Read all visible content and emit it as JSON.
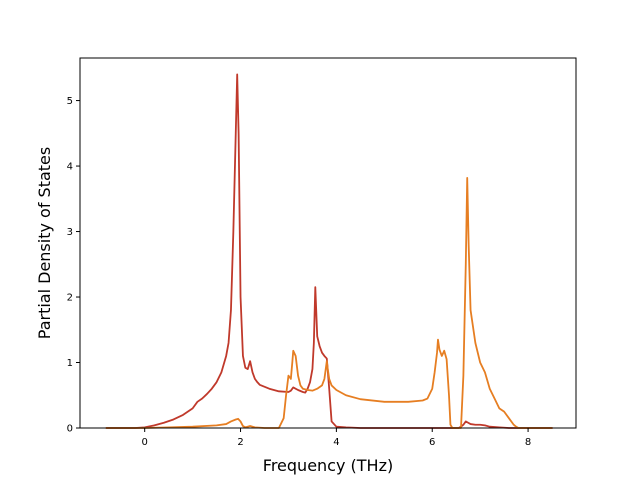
{
  "chart_data": {
    "type": "line",
    "xlabel": "Frequency (THz)",
    "ylabel": "Partial Density of States",
    "xlim": [
      -1.35,
      9.0
    ],
    "ylim": [
      0,
      5.65
    ],
    "xticks": [
      0,
      2,
      4,
      6,
      8
    ],
    "yticks": [
      0,
      1,
      2,
      3,
      4,
      5
    ],
    "grid": false,
    "legend": "none",
    "series": [
      {
        "color": "#c0392b",
        "x": [
          -0.8,
          -0.2,
          0.0,
          0.2,
          0.4,
          0.6,
          0.8,
          1.0,
          1.1,
          1.2,
          1.3,
          1.4,
          1.5,
          1.6,
          1.7,
          1.75,
          1.8,
          1.85,
          1.9,
          1.93,
          1.96,
          2.0,
          2.05,
          2.1,
          2.15,
          2.2,
          2.25,
          2.3,
          2.35,
          2.4,
          2.6,
          2.8,
          3.0,
          3.05,
          3.1,
          3.2,
          3.3,
          3.35,
          3.4,
          3.45,
          3.5,
          3.53,
          3.56,
          3.6,
          3.65,
          3.7,
          3.75,
          3.8,
          3.85,
          3.9,
          4.0,
          4.2,
          4.5,
          5.0,
          5.5,
          6.0,
          6.3,
          6.55,
          6.6,
          6.65,
          6.7,
          6.75,
          6.8,
          6.9,
          7.0,
          7.1,
          7.2,
          7.4,
          7.6,
          7.8,
          8.0,
          8.5
        ],
        "values": [
          0,
          0,
          0.01,
          0.04,
          0.08,
          0.13,
          0.2,
          0.3,
          0.4,
          0.45,
          0.52,
          0.6,
          0.7,
          0.85,
          1.1,
          1.3,
          1.8,
          3.0,
          4.5,
          5.4,
          4.5,
          2.0,
          1.1,
          0.92,
          0.9,
          1.02,
          0.85,
          0.75,
          0.7,
          0.66,
          0.6,
          0.56,
          0.55,
          0.57,
          0.62,
          0.58,
          0.55,
          0.54,
          0.6,
          0.7,
          0.9,
          1.3,
          2.15,
          1.4,
          1.25,
          1.15,
          1.1,
          1.06,
          0.6,
          0.1,
          0.02,
          0.01,
          0.0,
          0.0,
          0.0,
          0.0,
          0.0,
          0.0,
          0.02,
          0.05,
          0.1,
          0.08,
          0.06,
          0.05,
          0.05,
          0.04,
          0.02,
          0.01,
          0.0,
          0.0,
          0.0,
          0.0
        ]
      },
      {
        "color": "#e67e22",
        "x": [
          -0.8,
          0.0,
          0.5,
          1.0,
          1.5,
          1.7,
          1.8,
          1.9,
          1.95,
          2.0,
          2.05,
          2.1,
          2.2,
          2.3,
          2.5,
          2.8,
          2.9,
          2.95,
          3.0,
          3.05,
          3.08,
          3.1,
          3.15,
          3.2,
          3.25,
          3.3,
          3.4,
          3.5,
          3.6,
          3.7,
          3.75,
          3.8,
          3.82,
          3.85,
          3.9,
          4.0,
          4.2,
          4.5,
          5.0,
          5.5,
          5.8,
          5.9,
          6.0,
          6.05,
          6.1,
          6.12,
          6.15,
          6.2,
          6.25,
          6.3,
          6.35,
          6.38,
          6.42,
          6.6,
          6.65,
          6.7,
          6.73,
          6.76,
          6.8,
          6.9,
          7.0,
          7.1,
          7.2,
          7.3,
          7.4,
          7.5,
          7.6,
          7.7,
          7.75,
          7.8,
          8.5
        ],
        "values": [
          0,
          0,
          0.01,
          0.02,
          0.04,
          0.06,
          0.1,
          0.13,
          0.14,
          0.1,
          0.03,
          0.01,
          0.03,
          0.01,
          0.0,
          0.0,
          0.15,
          0.5,
          0.8,
          0.75,
          1.0,
          1.18,
          1.1,
          0.8,
          0.65,
          0.6,
          0.58,
          0.57,
          0.6,
          0.65,
          0.75,
          1.02,
          0.9,
          0.75,
          0.65,
          0.58,
          0.5,
          0.44,
          0.4,
          0.4,
          0.42,
          0.45,
          0.6,
          0.85,
          1.15,
          1.35,
          1.2,
          1.1,
          1.18,
          1.05,
          0.5,
          0.05,
          0.0,
          0.0,
          0.8,
          2.5,
          3.82,
          2.8,
          1.8,
          1.3,
          1.0,
          0.85,
          0.6,
          0.45,
          0.3,
          0.25,
          0.15,
          0.05,
          0.02,
          0.0,
          0.0
        ]
      }
    ]
  }
}
